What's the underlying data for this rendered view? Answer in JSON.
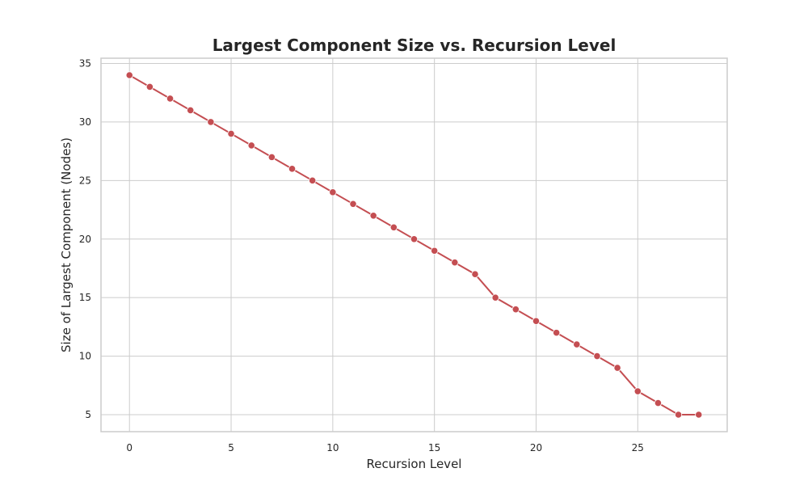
{
  "chart_data": {
    "type": "line",
    "title": "Largest Component Size vs. Recursion Level",
    "xlabel": "Recursion Level",
    "ylabel": "Size of Largest Component (Nodes)",
    "xlim": [
      -1.4,
      29.4
    ],
    "ylim": [
      3.55,
      35.45
    ],
    "xticks": [
      0,
      5,
      10,
      15,
      20,
      25
    ],
    "yticks": [
      5,
      10,
      15,
      20,
      25,
      30,
      35
    ],
    "grid": true,
    "color": "#c44e52",
    "series": [
      {
        "x": [
          0,
          1,
          2,
          3,
          4,
          5,
          6,
          7,
          8,
          9,
          10,
          11,
          12,
          13,
          14,
          15,
          16,
          17,
          18,
          19,
          20,
          21,
          22,
          23,
          24,
          25,
          26,
          27,
          28
        ],
        "values": [
          34,
          33,
          32,
          31,
          30,
          29,
          28,
          27,
          26,
          25,
          24,
          23,
          22,
          21,
          20,
          19,
          18,
          17,
          15,
          14,
          13,
          12,
          11,
          10,
          9,
          7,
          6,
          5,
          5
        ]
      }
    ]
  }
}
